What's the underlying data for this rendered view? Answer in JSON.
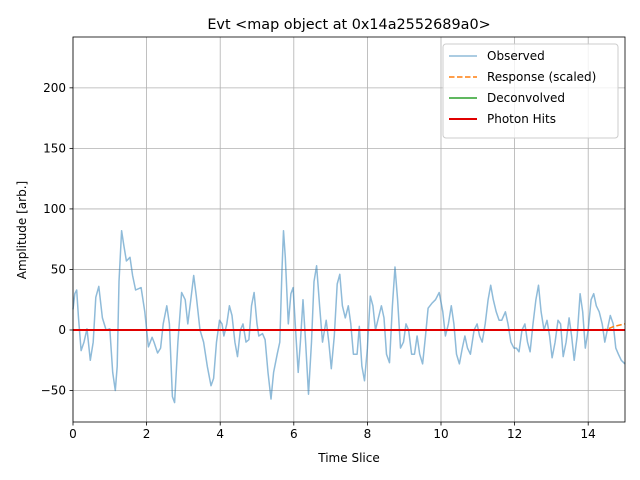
{
  "chart_data": {
    "type": "line",
    "title": "Evt <map object at 0x14a2552689a0>",
    "xlabel": "Time Slice",
    "ylabel": "Amplitude [arb.]",
    "xlim": [
      0,
      15
    ],
    "ylim": [
      -76,
      242
    ],
    "xticks": [
      0,
      2,
      4,
      6,
      8,
      10,
      12,
      14
    ],
    "xtick_labels": [
      "0",
      "2",
      "4",
      "6",
      "8",
      "10",
      "12",
      "14"
    ],
    "yticks": [
      -50,
      0,
      50,
      100,
      150,
      200
    ],
    "ytick_labels": [
      "−50",
      "0",
      "50",
      "100",
      "150",
      "200"
    ],
    "grid": true,
    "legend_position": "top-right",
    "series": [
      {
        "name": "Observed",
        "color": "#1f77b4",
        "opacity": 0.5,
        "style": "solid",
        "points": [
          [
            0.0,
            17
          ],
          [
            0.05,
            30
          ],
          [
            0.1,
            33
          ],
          [
            0.15,
            10
          ],
          [
            0.22,
            -17
          ],
          [
            0.3,
            -10
          ],
          [
            0.38,
            1
          ],
          [
            0.47,
            -25
          ],
          [
            0.55,
            -10
          ],
          [
            0.62,
            27
          ],
          [
            0.7,
            36
          ],
          [
            0.8,
            10
          ],
          [
            0.9,
            0
          ],
          [
            1.0,
            1
          ],
          [
            1.08,
            -35
          ],
          [
            1.15,
            -50
          ],
          [
            1.2,
            -30
          ],
          [
            1.25,
            40
          ],
          [
            1.32,
            82
          ],
          [
            1.38,
            70
          ],
          [
            1.45,
            57
          ],
          [
            1.55,
            60
          ],
          [
            1.62,
            45
          ],
          [
            1.7,
            33
          ],
          [
            1.85,
            35
          ],
          [
            1.95,
            15
          ],
          [
            2.05,
            -14
          ],
          [
            2.15,
            -6
          ],
          [
            2.2,
            -10
          ],
          [
            2.3,
            -19
          ],
          [
            2.38,
            -15
          ],
          [
            2.45,
            5
          ],
          [
            2.55,
            20
          ],
          [
            2.62,
            5
          ],
          [
            2.7,
            -55
          ],
          [
            2.76,
            -60
          ],
          [
            2.85,
            -10
          ],
          [
            2.95,
            31
          ],
          [
            3.05,
            25
          ],
          [
            3.12,
            5
          ],
          [
            3.2,
            25
          ],
          [
            3.28,
            45
          ],
          [
            3.35,
            28
          ],
          [
            3.45,
            0
          ],
          [
            3.55,
            -10
          ],
          [
            3.65,
            -30
          ],
          [
            3.75,
            -46
          ],
          [
            3.82,
            -40
          ],
          [
            3.9,
            -10
          ],
          [
            3.98,
            8
          ],
          [
            4.05,
            5
          ],
          [
            4.1,
            -5
          ],
          [
            4.18,
            5
          ],
          [
            4.25,
            20
          ],
          [
            4.32,
            12
          ],
          [
            4.4,
            -10
          ],
          [
            4.47,
            -22
          ],
          [
            4.55,
            0
          ],
          [
            4.62,
            5
          ],
          [
            4.7,
            -10
          ],
          [
            4.78,
            -8
          ],
          [
            4.85,
            20
          ],
          [
            4.92,
            31
          ],
          [
            5.0,
            5
          ],
          [
            5.05,
            -5
          ],
          [
            5.15,
            -3
          ],
          [
            5.22,
            -8
          ],
          [
            5.3,
            -35
          ],
          [
            5.38,
            -57
          ],
          [
            5.45,
            -35
          ],
          [
            5.55,
            -20
          ],
          [
            5.62,
            -10
          ],
          [
            5.68,
            50
          ],
          [
            5.72,
            82
          ],
          [
            5.77,
            60
          ],
          [
            5.85,
            5
          ],
          [
            5.92,
            30
          ],
          [
            5.98,
            35
          ],
          [
            6.05,
            0
          ],
          [
            6.12,
            -35
          ],
          [
            6.18,
            -10
          ],
          [
            6.25,
            25
          ],
          [
            6.32,
            -10
          ],
          [
            6.4,
            -53
          ],
          [
            6.48,
            -10
          ],
          [
            6.55,
            40
          ],
          [
            6.62,
            53
          ],
          [
            6.7,
            20
          ],
          [
            6.78,
            -10
          ],
          [
            6.88,
            8
          ],
          [
            6.95,
            -10
          ],
          [
            7.02,
            -32
          ],
          [
            7.1,
            -5
          ],
          [
            7.18,
            38
          ],
          [
            7.25,
            46
          ],
          [
            7.32,
            20
          ],
          [
            7.4,
            10
          ],
          [
            7.48,
            20
          ],
          [
            7.55,
            5
          ],
          [
            7.62,
            -20
          ],
          [
            7.72,
            -20
          ],
          [
            7.78,
            3
          ],
          [
            7.85,
            -30
          ],
          [
            7.92,
            -42
          ],
          [
            8.0,
            -15
          ],
          [
            8.08,
            28
          ],
          [
            8.15,
            20
          ],
          [
            8.22,
            0
          ],
          [
            8.3,
            10
          ],
          [
            8.38,
            20
          ],
          [
            8.45,
            10
          ],
          [
            8.52,
            -20
          ],
          [
            8.6,
            -27
          ],
          [
            8.68,
            20
          ],
          [
            8.75,
            52
          ],
          [
            8.82,
            25
          ],
          [
            8.9,
            -15
          ],
          [
            8.98,
            -10
          ],
          [
            9.05,
            5
          ],
          [
            9.12,
            0
          ],
          [
            9.2,
            -20
          ],
          [
            9.28,
            -20
          ],
          [
            9.35,
            -5
          ],
          [
            9.42,
            -20
          ],
          [
            9.5,
            -28
          ],
          [
            9.58,
            -5
          ],
          [
            9.65,
            18
          ],
          [
            9.75,
            22
          ],
          [
            9.85,
            25
          ],
          [
            9.95,
            31
          ],
          [
            10.05,
            15
          ],
          [
            10.12,
            -5
          ],
          [
            10.2,
            5
          ],
          [
            10.28,
            20
          ],
          [
            10.35,
            5
          ],
          [
            10.42,
            -20
          ],
          [
            10.5,
            -28
          ],
          [
            10.58,
            -15
          ],
          [
            10.65,
            -5
          ],
          [
            10.72,
            -15
          ],
          [
            10.8,
            -20
          ],
          [
            10.9,
            0
          ],
          [
            10.98,
            5
          ],
          [
            11.05,
            -5
          ],
          [
            11.12,
            -10
          ],
          [
            11.2,
            5
          ],
          [
            11.28,
            25
          ],
          [
            11.35,
            37
          ],
          [
            11.42,
            25
          ],
          [
            11.5,
            15
          ],
          [
            11.58,
            8
          ],
          [
            11.65,
            8
          ],
          [
            11.75,
            15
          ],
          [
            11.82,
            5
          ],
          [
            11.9,
            -10
          ],
          [
            11.98,
            -15
          ],
          [
            12.05,
            -15
          ],
          [
            12.12,
            -18
          ],
          [
            12.2,
            0
          ],
          [
            12.28,
            5
          ],
          [
            12.35,
            -10
          ],
          [
            12.42,
            -18
          ],
          [
            12.5,
            5
          ],
          [
            12.58,
            25
          ],
          [
            12.65,
            37
          ],
          [
            12.72,
            15
          ],
          [
            12.8,
            0
          ],
          [
            12.88,
            8
          ],
          [
            12.95,
            -5
          ],
          [
            13.02,
            -23
          ],
          [
            13.1,
            -10
          ],
          [
            13.18,
            8
          ],
          [
            13.25,
            5
          ],
          [
            13.32,
            -22
          ],
          [
            13.4,
            -10
          ],
          [
            13.48,
            10
          ],
          [
            13.55,
            -5
          ],
          [
            13.62,
            -25
          ],
          [
            13.7,
            -5
          ],
          [
            13.78,
            30
          ],
          [
            13.85,
            15
          ],
          [
            13.92,
            -15
          ],
          [
            14.0,
            0
          ],
          [
            14.08,
            25
          ],
          [
            14.15,
            30
          ],
          [
            14.22,
            20
          ],
          [
            14.3,
            15
          ],
          [
            14.38,
            5
          ],
          [
            14.45,
            -10
          ],
          [
            14.52,
            0
          ],
          [
            14.6,
            12
          ],
          [
            14.68,
            5
          ],
          [
            14.75,
            -15
          ],
          [
            14.82,
            -20
          ],
          [
            14.9,
            -25
          ],
          [
            15.0,
            -28
          ]
        ]
      },
      {
        "name": "Response (scaled)",
        "color": "#ff7f0e",
        "opacity": 1,
        "style": "dashed",
        "points": [
          [
            0.0,
            0
          ],
          [
            14.4,
            0
          ],
          [
            14.55,
            1
          ],
          [
            14.7,
            3
          ],
          [
            14.85,
            4
          ],
          [
            15.0,
            5
          ]
        ]
      },
      {
        "name": "Deconvolved",
        "color": "#2ca02c",
        "opacity": 1,
        "style": "solid",
        "points": [
          [
            0.0,
            0
          ],
          [
            15.0,
            0
          ]
        ]
      },
      {
        "name": "Photon Hits",
        "color": "#e00000",
        "opacity": 1,
        "style": "solid",
        "points": [
          [
            0.0,
            0
          ],
          [
            15.0,
            0
          ]
        ]
      }
    ]
  }
}
